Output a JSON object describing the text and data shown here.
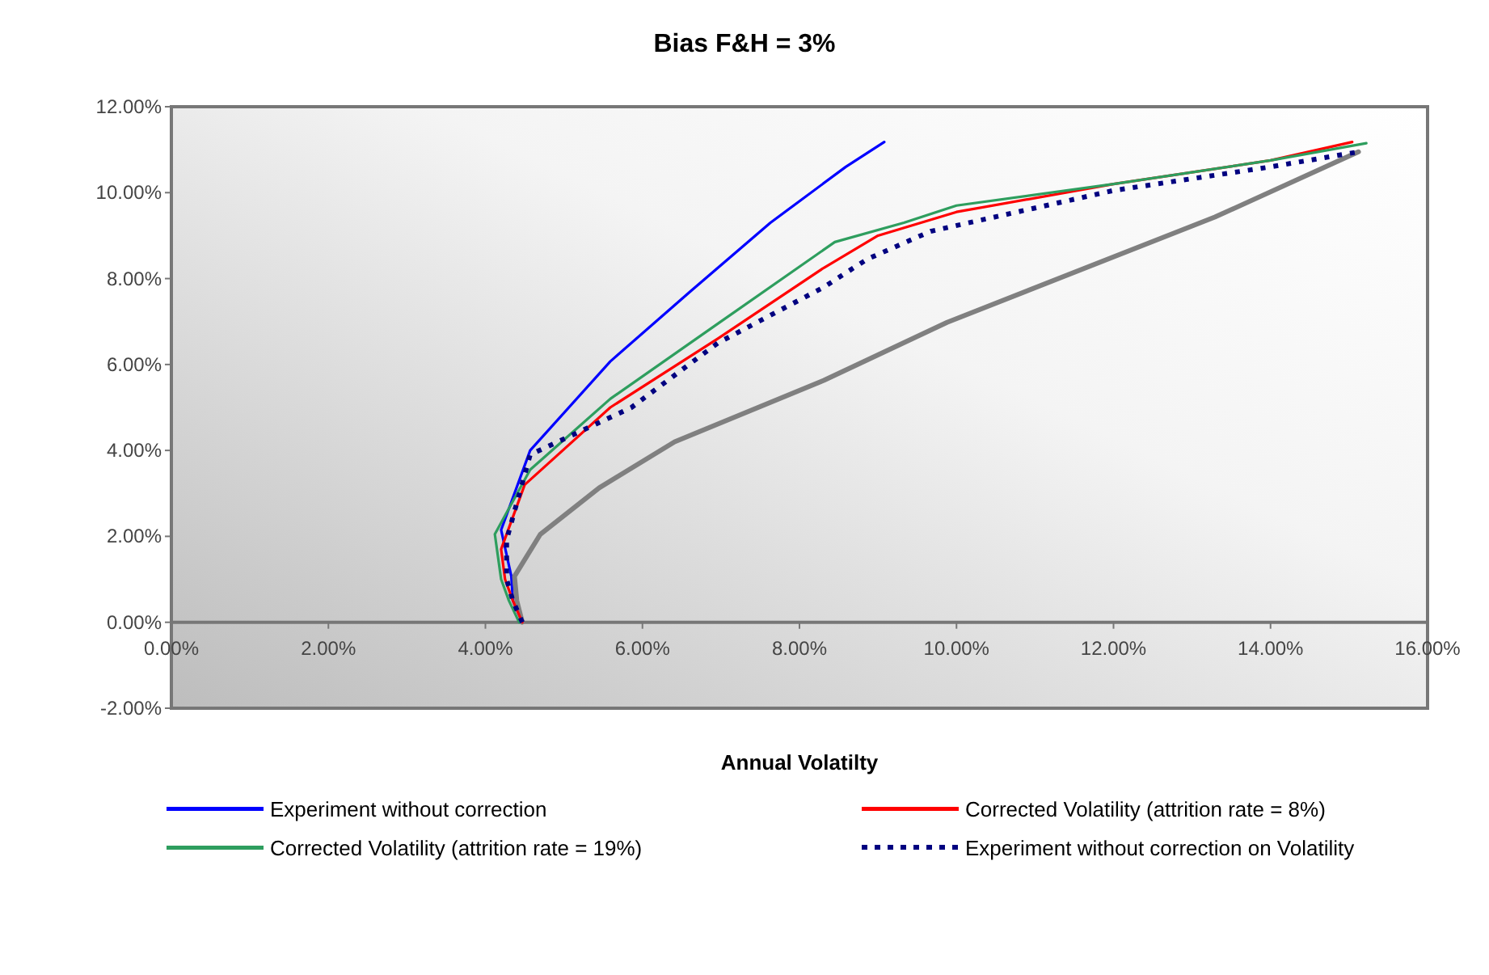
{
  "chart_data": {
    "type": "line",
    "title": "Bias F&H = 3%",
    "xlabel": "Annual Volatilty",
    "xlim": [
      0,
      16
    ],
    "ylim": [
      -2,
      12
    ],
    "xticks": [
      {
        "value": 0,
        "label": "0.00%"
      },
      {
        "value": 2,
        "label": "2.00%"
      },
      {
        "value": 4,
        "label": "4.00%"
      },
      {
        "value": 6,
        "label": "6.00%"
      },
      {
        "value": 8,
        "label": "8.00%"
      },
      {
        "value": 10,
        "label": "10.00%"
      },
      {
        "value": 12,
        "label": "12.00%"
      },
      {
        "value": 14,
        "label": "14.00%"
      },
      {
        "value": 16,
        "label": "16.00%"
      }
    ],
    "yticks": [
      {
        "value": -2,
        "label": "-2.00%"
      },
      {
        "value": 0,
        "label": "0.00%"
      },
      {
        "value": 2,
        "label": "2.00%"
      },
      {
        "value": 4,
        "label": "4.00%"
      },
      {
        "value": 6,
        "label": "6.00%"
      },
      {
        "value": 8,
        "label": "8.00%"
      },
      {
        "value": 10,
        "label": "10.00%"
      },
      {
        "value": 12,
        "label": "12.00%"
      }
    ],
    "grid": false,
    "legend": "bottom",
    "series": [
      {
        "name": "Experiment without correction",
        "color": "#0000ff",
        "x": [
          4.47,
          4.35,
          4.33,
          4.2,
          4.57,
          5.59,
          6.61,
          7.63,
          8.59,
          9.08
        ],
        "values": [
          0,
          0.5,
          1.07,
          2.15,
          4.0,
          6.07,
          7.7,
          9.3,
          10.6,
          11.18
        ]
      },
      {
        "color": "#808080",
        "x": [
          4.47,
          4.4,
          4.37,
          4.7,
          5.45,
          6.41,
          8.31,
          9.88,
          13.29,
          15.12
        ],
        "values": [
          0,
          0.5,
          1.07,
          2.05,
          3.13,
          4.2,
          5.63,
          6.98,
          9.43,
          10.95
        ]
      },
      {
        "name": "Corrected Volatility (attrition rate = 8%)",
        "color": "#ff0000",
        "x": [
          4.47,
          4.35,
          4.25,
          4.2,
          4.5,
          5.59,
          6.96,
          8.31,
          9.0,
          10.0,
          12.0,
          14.0,
          15.04
        ],
        "values": [
          0,
          0.5,
          1.0,
          1.7,
          3.2,
          5.0,
          6.6,
          8.25,
          9.0,
          9.55,
          10.2,
          10.75,
          11.18
        ]
      },
      {
        "name": "Corrected Volatility (attrition rate = 19%)",
        "color": "#2e9e5e",
        "x": [
          4.43,
          4.3,
          4.2,
          4.12,
          4.57,
          5.59,
          6.96,
          8.45,
          9.33,
          10.0,
          12.0,
          14.0,
          15.22
        ],
        "values": [
          0,
          0.5,
          1.0,
          2.05,
          3.55,
          5.2,
          6.95,
          8.85,
          9.3,
          9.7,
          10.2,
          10.75,
          11.15
        ]
      },
      {
        "name": "Experiment without correction on Volatility",
        "color": "#000080",
        "line_style": "dotted",
        "x": [
          4.47,
          4.35,
          4.27,
          4.27,
          4.57,
          5.86,
          6.96,
          8.31,
          8.86,
          9.67,
          12.0,
          14.0,
          15.12
        ],
        "values": [
          0,
          0.5,
          1.0,
          1.92,
          3.9,
          5.0,
          6.5,
          7.8,
          8.45,
          9.1,
          10.05,
          10.6,
          10.95
        ]
      }
    ]
  }
}
